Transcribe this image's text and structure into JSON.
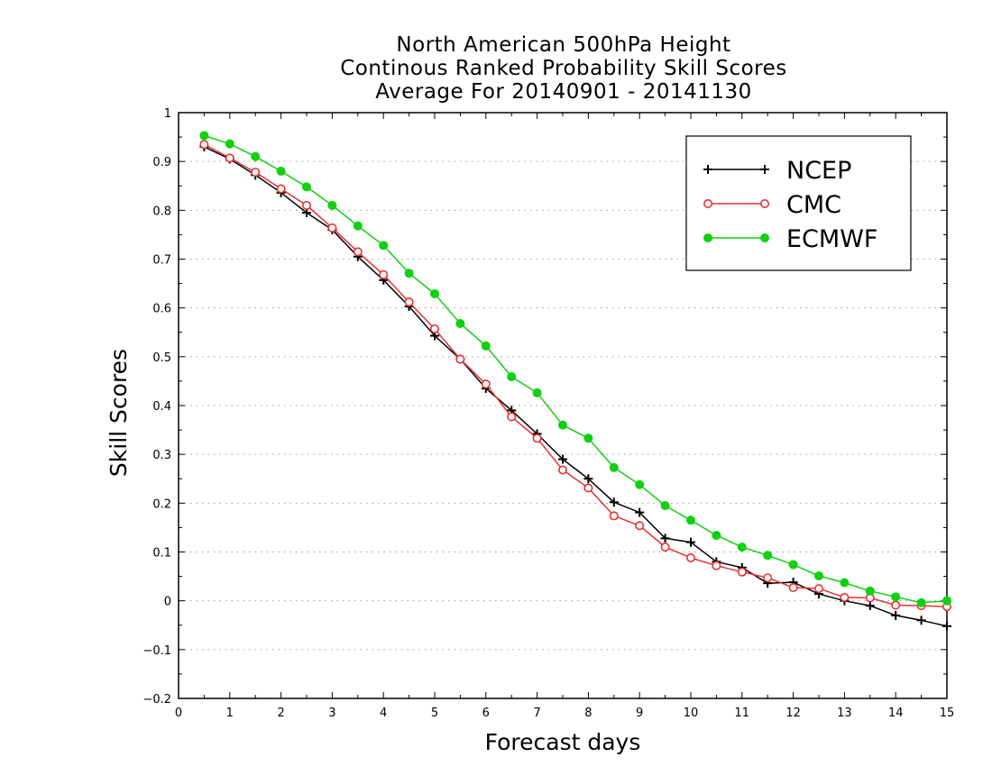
{
  "chart_data": {
    "type": "line",
    "title": [
      "North American 500hPa Height",
      "Continous Ranked Probability Skill Scores",
      "Average For 20140901 - 20141130"
    ],
    "xlabel": "Forecast days",
    "ylabel": "Skill Scores",
    "xlim": [
      0,
      15
    ],
    "ylim": [
      -0.2,
      1
    ],
    "xticks": [
      "0",
      "1",
      "2",
      "3",
      "4",
      "5",
      "6",
      "7",
      "8",
      "9",
      "10",
      "11",
      "12",
      "13",
      "14",
      "15"
    ],
    "yticks": [
      "−0.2",
      "−0.1",
      "0",
      "0.1",
      "0.2",
      "0.3",
      "0.4",
      "0.5",
      "0.6",
      "0.7",
      "0.8",
      "0.9",
      "1"
    ],
    "grid": "horizontal-dotted",
    "legend_position": "top-right",
    "x": [
      0.5,
      1,
      1.5,
      2,
      2.5,
      3,
      3.5,
      4,
      4.5,
      5,
      5.5,
      6,
      6.5,
      7,
      7.5,
      8,
      8.5,
      9,
      9.5,
      10,
      10.5,
      11,
      11.5,
      12,
      12.5,
      13,
      13.5,
      14,
      14.5,
      15
    ],
    "series": [
      {
        "name": "NCEP",
        "color": "#000000",
        "marker": "plus",
        "values": [
          0.93,
          0.905,
          0.872,
          0.836,
          0.795,
          0.76,
          0.705,
          0.657,
          0.603,
          0.543,
          0.495,
          0.435,
          0.39,
          0.342,
          0.29,
          0.25,
          0.202,
          0.181,
          0.128,
          0.12,
          0.08,
          0.068,
          0.036,
          0.038,
          0.014,
          0.0,
          -0.01,
          -0.03,
          -0.04,
          -0.052
        ]
      },
      {
        "name": "CMC",
        "color": "#e83030",
        "marker": "open-circle",
        "values": [
          0.935,
          0.907,
          0.878,
          0.844,
          0.81,
          0.764,
          0.715,
          0.668,
          0.612,
          0.557,
          0.495,
          0.444,
          0.377,
          0.333,
          0.268,
          0.231,
          0.174,
          0.154,
          0.11,
          0.088,
          0.072,
          0.059,
          0.047,
          0.027,
          0.025,
          0.007,
          0.006,
          -0.009,
          -0.01,
          -0.012
        ]
      },
      {
        "name": "ECMWF",
        "color": "#10d010",
        "marker": "filled-circle",
        "values": [
          0.953,
          0.936,
          0.91,
          0.88,
          0.848,
          0.81,
          0.768,
          0.728,
          0.671,
          0.629,
          0.568,
          0.522,
          0.459,
          0.426,
          0.36,
          0.333,
          0.273,
          0.238,
          0.195,
          0.165,
          0.134,
          0.11,
          0.093,
          0.074,
          0.051,
          0.037,
          0.02,
          0.008,
          -0.004,
          0.0
        ]
      }
    ]
  }
}
